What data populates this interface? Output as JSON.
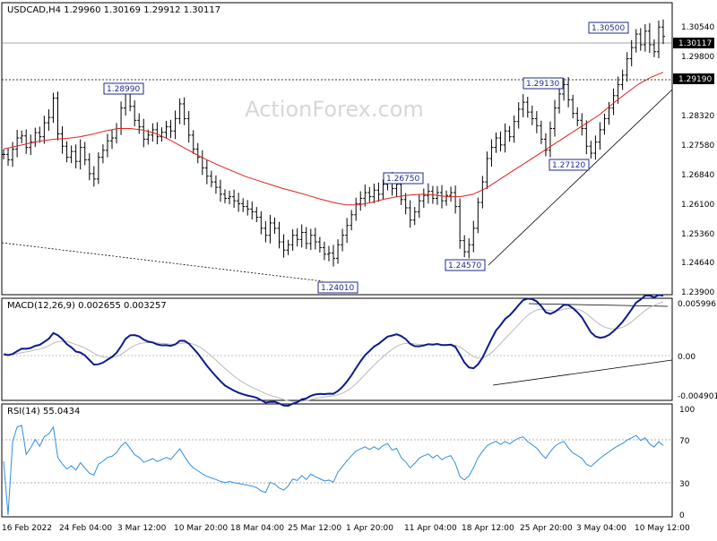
{
  "header": {
    "main_title": "USDCAD,H4  1.29960 1.30169 1.29912 1.30117",
    "macd_title": "MACD(12,26,9) 0.002655 0.003257",
    "rsi_title": "RSI(14) 55.0434"
  },
  "watermark": "ActionForex.com",
  "colors": {
    "price_bars": "#000000",
    "moving_average": "#e0211d",
    "macd_line": "#0f1a8c",
    "signal_line": "#b9b9b9",
    "rsi_line": "#2e8ee0",
    "grid": "#555555",
    "label_box_border": "#1f2a8a",
    "trendline": "#000000",
    "current_price_box": "#000000",
    "current_price_text": "#ffffff",
    "watermark": "#d7d7d7"
  },
  "chart_data": [
    {
      "type": "candlestick",
      "title": "USDCAD,H4",
      "ohlc_latest": {
        "open": 1.2996,
        "high": 1.30169,
        "low": 1.29912,
        "close": 1.30117
      },
      "ylim": [
        1.239,
        1.309
      ],
      "y_ticks": [
        "1.30540",
        "1.29800",
        "1.29190",
        "1.28320",
        "1.27580",
        "1.26840",
        "1.26100",
        "1.25360",
        "1.24640",
        "1.23900"
      ],
      "y_tick_values": [
        1.3054,
        1.298,
        1.2919,
        1.2832,
        1.2758,
        1.2684,
        1.261,
        1.2536,
        1.2464,
        1.239
      ],
      "current_price": "1.30117",
      "horizontal_line_label": "1.29190",
      "x_labels": [
        "16 Feb 2022",
        "24 Feb 04:00",
        "3 Mar 12:00",
        "10 Mar 20:00",
        "18 Mar 04:00",
        "25 Mar 12:00",
        "1 Apr 20:00",
        "11 Apr 04:00",
        "18 Apr 12:00",
        "25 Apr 20:00",
        "3 May 04:00",
        "10 May 12:00"
      ],
      "closes": [
        1.2725,
        1.2712,
        1.2738,
        1.2765,
        1.277,
        1.2742,
        1.2755,
        1.2778,
        1.2768,
        1.2802,
        1.2815,
        1.2862,
        1.2775,
        1.2745,
        1.2718,
        1.2732,
        1.2708,
        1.2742,
        1.2712,
        1.2678,
        1.2665,
        1.2718,
        1.2735,
        1.2758,
        1.2765,
        1.2788,
        1.2838,
        1.2872,
        1.2842,
        1.2808,
        1.2792,
        1.2762,
        1.2772,
        1.2785,
        1.2768,
        1.2779,
        1.2792,
        1.2782,
        1.2812,
        1.2848,
        1.2812,
        1.2772,
        1.2738,
        1.2718,
        1.2692,
        1.2672,
        1.2658,
        1.2645,
        1.2628,
        1.2618,
        1.2622,
        1.2612,
        1.2605,
        1.2598,
        1.2592,
        1.2585,
        1.2572,
        1.2545,
        1.2528,
        1.2558,
        1.2545,
        1.2512,
        1.2492,
        1.2505,
        1.2528,
        1.2518,
        1.2535,
        1.2508,
        1.2528,
        1.2512,
        1.2498,
        1.2482,
        1.2485,
        1.2472,
        1.2505,
        1.2528,
        1.2552,
        1.2578,
        1.2605,
        1.2618,
        1.2632,
        1.2622,
        1.2638,
        1.2628,
        1.2652,
        1.2665,
        1.2642,
        1.2652,
        1.2615,
        1.2595,
        1.2565,
        1.2585,
        1.2612,
        1.2625,
        1.2635,
        1.2618,
        1.2632,
        1.2612,
        1.2625,
        1.2632,
        1.2598,
        1.2515,
        1.2488,
        1.2505,
        1.2545,
        1.2608,
        1.2658,
        1.2715,
        1.2742,
        1.2765,
        1.2748,
        1.2782,
        1.2768,
        1.2805,
        1.2835,
        1.2852,
        1.2828,
        1.2812,
        1.2795,
        1.2762,
        1.2735,
        1.2788,
        1.2838,
        1.2872,
        1.2895,
        1.2858,
        1.2825,
        1.2808,
        1.2788,
        1.2745,
        1.2728,
        1.2755,
        1.2785,
        1.2812,
        1.2838,
        1.2868,
        1.2895,
        1.2918,
        1.2958,
        1.2985,
        1.3018,
        1.2992,
        1.3025,
        1.2992,
        1.2975,
        1.3035,
        1.3012
      ],
      "moving_average_closes_estimate": [
        1.2738,
        1.2745,
        1.2752,
        1.2758,
        1.2762,
        1.2764,
        1.2768,
        1.2774,
        1.2782,
        1.2788,
        1.2788,
        1.2784,
        1.2776,
        1.2762,
        1.2745,
        1.2728,
        1.2712,
        1.2698,
        1.2685,
        1.2672,
        1.2662,
        1.2652,
        1.2642,
        1.2634,
        1.2625,
        1.2616,
        1.2608,
        1.2602,
        1.2602,
        1.2608,
        1.2616,
        1.2622,
        1.2626,
        1.2628,
        1.2626,
        1.2622,
        1.2622,
        1.2628,
        1.2642,
        1.2662,
        1.2682,
        1.2702,
        1.2722,
        1.2742,
        1.2762,
        1.2782,
        1.2802,
        1.2822,
        1.2848,
        1.2872,
        1.2895,
        1.2912,
        1.2925
      ],
      "annotations": [
        {
          "label": "1.28990",
          "price": 1.2899,
          "bar": 33
        },
        {
          "label": "1.24010",
          "price": 1.2401,
          "bar": 72
        },
        {
          "label": "1.26750",
          "price": 1.2675,
          "bar": 90
        },
        {
          "label": "1.24570",
          "price": 1.2457,
          "bar": 103
        },
        {
          "label": "1.29130",
          "price": 1.2913,
          "bar": 124
        },
        {
          "label": "1.27120",
          "price": 1.2712,
          "bar": 129
        },
        {
          "label": "1.30500",
          "price": 1.305,
          "bar": 139
        }
      ]
    },
    {
      "type": "line",
      "title": "MACD(12,26,9)",
      "series": [
        {
          "name": "MACD",
          "values": [
            0.002655
          ]
        },
        {
          "name": "Signal",
          "values": [
            0.003257
          ]
        }
      ],
      "y_ticks": [
        "0.005996",
        "0.00",
        "-0.004901"
      ],
      "y_tick_values": [
        0.005996,
        0,
        -0.004901
      ]
    },
    {
      "type": "line",
      "title": "RSI(14)",
      "series": [
        {
          "name": "RSI",
          "values": [
            55.0434
          ]
        }
      ],
      "y_ticks": [
        "100",
        "70",
        "30",
        "0"
      ],
      "y_tick_values": [
        100,
        70,
        30,
        0
      ]
    }
  ]
}
